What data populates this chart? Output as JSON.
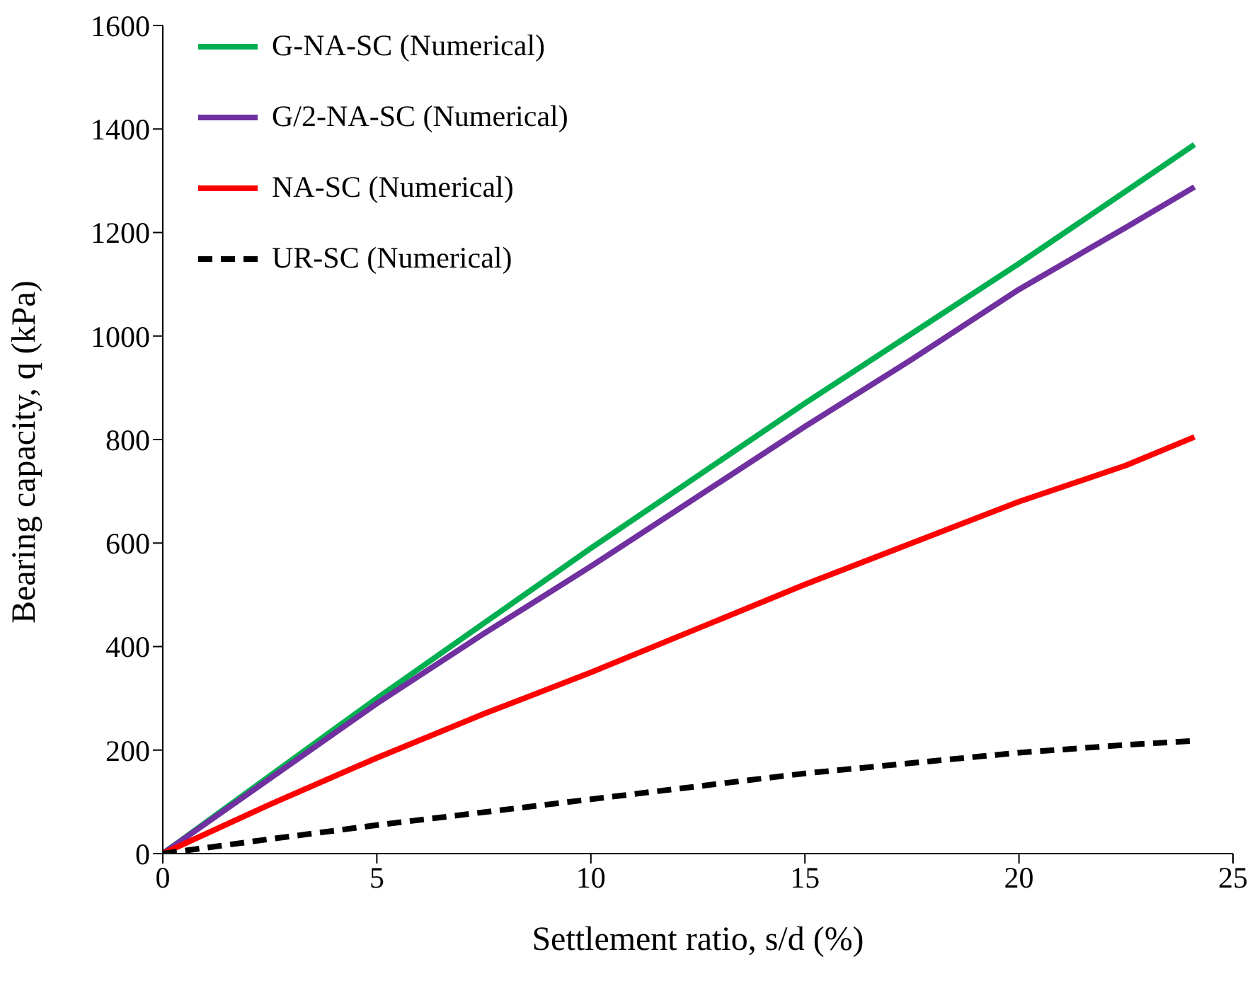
{
  "chart_data": {
    "type": "line",
    "xlabel": "Settlement ratio, s/d (%)",
    "ylabel": "Bearing capacity, q (kPa)",
    "x": [
      0,
      2.5,
      5,
      7.5,
      10,
      12.5,
      15,
      17.5,
      20,
      22.5,
      24.1
    ],
    "series": [
      {
        "name": "G-NA-SC (Numerical)",
        "color": "#00b050",
        "values": [
          0,
          150,
          300,
          445,
          590,
          730,
          870,
          1005,
          1140,
          1280,
          1370
        ]
      },
      {
        "name": "G/2-NA-SC (Numerical)",
        "color": "#7030a0",
        "values": [
          0,
          145,
          290,
          425,
          555,
          690,
          825,
          955,
          1090,
          1210,
          1288
        ]
      },
      {
        "name": "NA-SC (Numerical)",
        "color": "#ff0000",
        "values": [
          0,
          95,
          185,
          270,
          350,
          435,
          520,
          600,
          680,
          750,
          805
        ]
      },
      {
        "name": "UR-SC (Numerical)",
        "color": "#000000",
        "line_style": "dashed",
        "values": [
          0,
          28,
          55,
          80,
          105,
          130,
          155,
          175,
          195,
          210,
          218
        ]
      }
    ],
    "xlim": [
      0,
      25
    ],
    "xticks": [
      0,
      5,
      10,
      15,
      20,
      25
    ],
    "ylim": [
      0,
      1600
    ],
    "yticks": [
      0,
      200,
      400,
      600,
      800,
      1000,
      1200,
      1400,
      1600
    ],
    "grid": false,
    "legend": "top left",
    "marker": "none"
  }
}
